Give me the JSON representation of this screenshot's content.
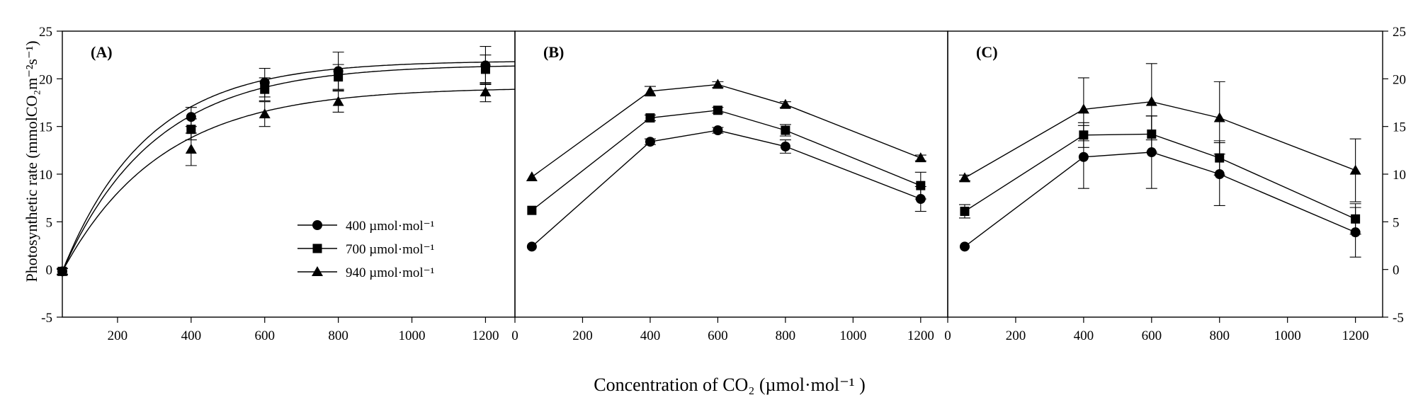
{
  "figure": {
    "ylabel": "Photosynthetic rate (mmolCO₂m⁻²s⁻¹)",
    "xlabel": "Concentration of CO₂ (µmol·mol⁻¹ )"
  },
  "legend": {
    "items": [
      {
        "label": "400 µmol·mol⁻¹",
        "marker": "circle"
      },
      {
        "label": "700 µmol·mol⁻¹",
        "marker": "square"
      },
      {
        "label": "940 µmol·mol⁻¹",
        "marker": "triangle"
      }
    ]
  },
  "chart_data": [
    {
      "panel": "(A)",
      "type": "line",
      "curve": "smooth",
      "x": [
        50,
        400,
        600,
        800,
        1200
      ],
      "xlim": [
        50,
        1280
      ],
      "xticks": [
        200,
        400,
        600,
        800,
        1000,
        1200
      ],
      "ylim": [
        -5,
        25
      ],
      "yticks": [
        -5,
        0,
        5,
        10,
        15,
        20,
        25
      ],
      "series": [
        {
          "name": "400 µmol·mol⁻¹",
          "marker": "circle",
          "values": [
            -0.2,
            16.0,
            19.6,
            20.8,
            21.4
          ],
          "errors": [
            0.3,
            1.0,
            1.5,
            2.0,
            2.0
          ]
        },
        {
          "name": "700 µmol·mol⁻¹",
          "marker": "square",
          "values": [
            -0.2,
            14.7,
            18.9,
            20.2,
            21.0
          ],
          "errors": [
            0.3,
            1.1,
            1.2,
            1.3,
            1.5
          ]
        },
        {
          "name": "940 µmol·mol⁻¹",
          "marker": "triangle",
          "values": [
            -0.2,
            12.6,
            16.3,
            17.6,
            18.6
          ],
          "errors": [
            0.3,
            1.7,
            1.3,
            1.1,
            1.0
          ]
        }
      ]
    },
    {
      "panel": "(B)",
      "type": "line",
      "curve": "straight",
      "x": [
        50,
        400,
        600,
        800,
        1200
      ],
      "xlim": [
        0,
        1280
      ],
      "xticks": [
        0,
        200,
        400,
        600,
        800,
        1000,
        1200
      ],
      "ylim": [
        -5,
        25
      ],
      "series": [
        {
          "name": "400 µmol·mol⁻¹",
          "marker": "circle",
          "values": [
            2.4,
            13.4,
            14.6,
            12.9,
            7.4
          ],
          "errors": [
            0.2,
            0.3,
            0.3,
            0.7,
            1.3
          ]
        },
        {
          "name": "700 µmol·mol⁻¹",
          "marker": "square",
          "values": [
            6.2,
            15.9,
            16.7,
            14.6,
            8.8
          ],
          "errors": [
            0.2,
            0.3,
            0.3,
            0.6,
            1.4
          ]
        },
        {
          "name": "940 µmol·mol⁻¹",
          "marker": "triangle",
          "values": [
            9.7,
            18.7,
            19.4,
            17.3,
            11.7
          ],
          "errors": [
            0.2,
            0.5,
            0.3,
            0.3,
            0.3
          ]
        }
      ]
    },
    {
      "panel": "(C)",
      "type": "line",
      "curve": "straight",
      "x": [
        50,
        400,
        600,
        800,
        1200
      ],
      "xlim": [
        0,
        1280
      ],
      "xticks": [
        0,
        200,
        400,
        600,
        800,
        1000,
        1200
      ],
      "ylim": [
        -5,
        25
      ],
      "yticks": [
        -5,
        0,
        5,
        10,
        15,
        20,
        25
      ],
      "series": [
        {
          "name": "400 µmol·mol⁻¹",
          "marker": "circle",
          "values": [
            2.4,
            11.8,
            12.3,
            10.0,
            3.9
          ],
          "errors": [
            0.2,
            3.3,
            3.8,
            3.3,
            2.6
          ]
        },
        {
          "name": "700 µmol·mol⁻¹",
          "marker": "square",
          "values": [
            6.1,
            14.1,
            14.2,
            11.7,
            5.3
          ],
          "errors": [
            0.7,
            1.3,
            1.9,
            1.8,
            1.6
          ]
        },
        {
          "name": "940 µmol·mol⁻¹",
          "marker": "triangle",
          "values": [
            9.6,
            16.8,
            17.6,
            15.9,
            10.4
          ],
          "errors": [
            0.3,
            3.3,
            4.0,
            3.8,
            3.3
          ]
        }
      ]
    }
  ]
}
